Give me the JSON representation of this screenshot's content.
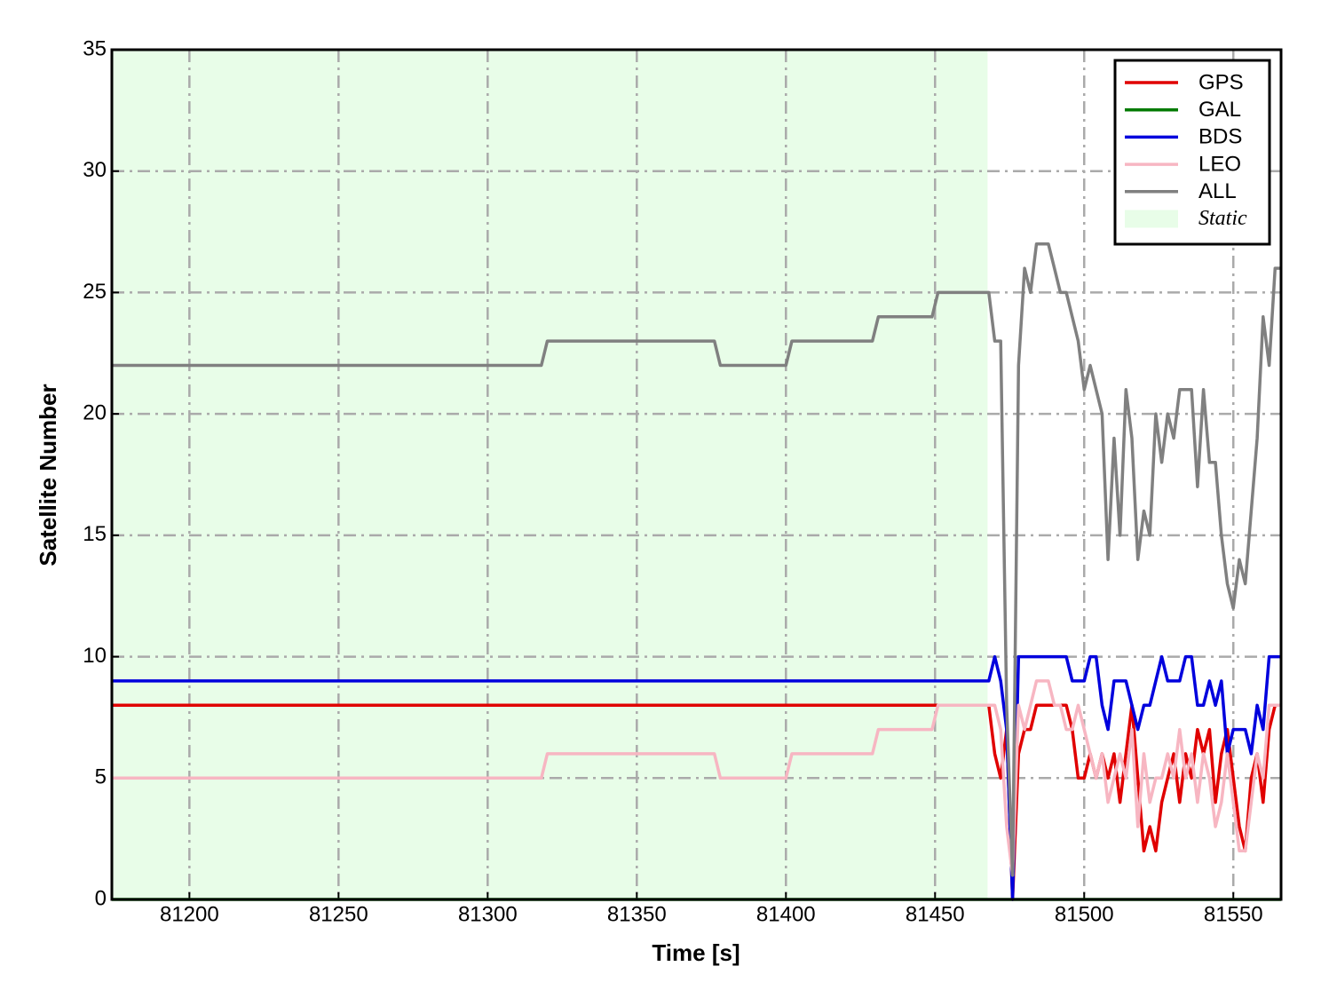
{
  "chart_data": {
    "type": "line",
    "xlabel": "Time [s]",
    "ylabel": "Satellite Number",
    "x": [
      81174,
      81318,
      81320,
      81376,
      81378,
      81400,
      81402,
      81429,
      81431,
      81449,
      81451,
      81468,
      81470,
      81472,
      81474,
      81476,
      81478,
      81480,
      81482,
      81484,
      81486,
      81488,
      81490,
      81492,
      81494,
      81496,
      81498,
      81500,
      81502,
      81504,
      81506,
      81508,
      81510,
      81512,
      81514,
      81516,
      81518,
      81520,
      81522,
      81524,
      81526,
      81528,
      81530,
      81532,
      81534,
      81536,
      81538,
      81540,
      81542,
      81544,
      81546,
      81548,
      81550,
      81552,
      81554,
      81556,
      81558,
      81560,
      81562,
      81564,
      81566
    ],
    "series": [
      {
        "name": "GPS",
        "color": "#e00000",
        "values": [
          8,
          8,
          8,
          8,
          8,
          8,
          8,
          8,
          8,
          8,
          8,
          8,
          6,
          5,
          7,
          0,
          6,
          7,
          7,
          8,
          8,
          8,
          8,
          8,
          8,
          7,
          5,
          5,
          6,
          5,
          6,
          5,
          6,
          4,
          6,
          8,
          5,
          2,
          3,
          2,
          4,
          5,
          6,
          4,
          6,
          5,
          7,
          6,
          7,
          4,
          6,
          7,
          5,
          3,
          2,
          5,
          6,
          4,
          7,
          8,
          8
        ]
      },
      {
        "name": "GAL",
        "color": "#007a00",
        "values": [
          0,
          0,
          0,
          0,
          0,
          0,
          0,
          0,
          0,
          0,
          0,
          0,
          0,
          0,
          0,
          0,
          0,
          0,
          0,
          0,
          0,
          0,
          0,
          0,
          0,
          0,
          0,
          0,
          0,
          0,
          0,
          0,
          0,
          0,
          0,
          0,
          0,
          0,
          0,
          0,
          0,
          0,
          0,
          0,
          0,
          0,
          0,
          0,
          0,
          0,
          0,
          0,
          0,
          0,
          0,
          0,
          0,
          0,
          0,
          0,
          0
        ]
      },
      {
        "name": "BDS",
        "color": "#0000dd",
        "values": [
          9,
          9,
          9,
          9,
          9,
          9,
          9,
          9,
          9,
          9,
          9,
          9,
          10,
          9,
          7,
          0,
          10,
          10,
          10,
          10,
          10,
          10,
          10,
          10,
          10,
          9,
          9,
          9,
          10,
          10,
          8,
          7,
          9,
          9,
          9,
          8,
          7,
          8,
          8,
          9,
          10,
          9,
          9,
          9,
          10,
          10,
          8,
          8,
          9,
          8,
          9,
          6,
          7,
          7,
          7,
          6,
          8,
          7,
          10,
          10,
          10
        ]
      },
      {
        "name": "LEO",
        "color": "#f7b6c2",
        "values": [
          5,
          5,
          6,
          6,
          5,
          5,
          6,
          6,
          7,
          7,
          8,
          8,
          8,
          7,
          3,
          1,
          8,
          7,
          8,
          9,
          9,
          9,
          8,
          8,
          7,
          7,
          8,
          7,
          6,
          5,
          6,
          4,
          5,
          6,
          5,
          7,
          3,
          6,
          4,
          5,
          5,
          6,
          5,
          7,
          5,
          6,
          4,
          6,
          5,
          3,
          4,
          6,
          4,
          2,
          2,
          4,
          6,
          5,
          8,
          8,
          8
        ]
      },
      {
        "name": "ALL",
        "color": "#808080",
        "values": [
          22,
          22,
          23,
          23,
          22,
          22,
          23,
          23,
          24,
          24,
          25,
          25,
          23,
          23,
          8,
          1,
          22,
          26,
          25,
          27,
          27,
          27,
          26,
          25,
          25,
          24,
          23,
          21,
          22,
          21,
          20,
          14,
          19,
          15,
          21,
          19,
          14,
          16,
          15,
          20,
          18,
          20,
          19,
          21,
          21,
          21,
          17,
          21,
          18,
          18,
          15,
          13,
          12,
          14,
          13,
          16,
          19,
          24,
          22,
          26,
          26
        ]
      }
    ],
    "span": {
      "name": "Static",
      "color": "#e8fde8",
      "range": [
        81174,
        81467.6
      ]
    },
    "xlim": [
      81174,
      81566
    ],
    "ylim": [
      0,
      35
    ],
    "xticks": [
      81200,
      81250,
      81300,
      81350,
      81400,
      81450,
      81500,
      81550
    ],
    "yticks": [
      0,
      5,
      10,
      15,
      20,
      25,
      30,
      35
    ],
    "grid": true,
    "legend": "upper right"
  }
}
